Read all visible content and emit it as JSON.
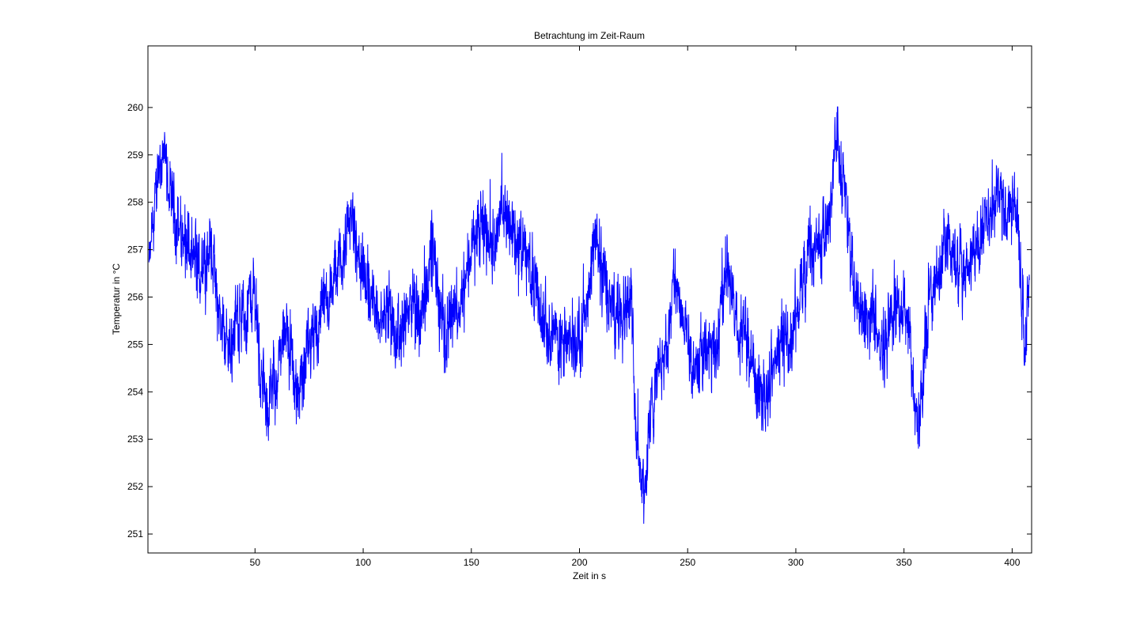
{
  "chart_data": {
    "type": "line",
    "title": "Betrachtung im Zeit-Raum",
    "xlabel": "Zeit in s",
    "ylabel": "Temperatur in °C",
    "xlim": [
      0.5,
      409
    ],
    "ylim": [
      250.6,
      261.3
    ],
    "xticks": [
      50,
      100,
      150,
      200,
      250,
      300,
      350,
      400
    ],
    "yticks": [
      251,
      252,
      253,
      254,
      255,
      256,
      257,
      258,
      259,
      260
    ],
    "grid": false,
    "legend": "none",
    "series": [
      {
        "color": "#0000ff",
        "samples_per_second": 10,
        "noise_amplitude": 0.9,
        "trend": [
          [
            1,
            256.5
          ],
          [
            3,
            257.6
          ],
          [
            5,
            258.6
          ],
          [
            7,
            259.0
          ],
          [
            9,
            258.5
          ],
          [
            12,
            258.0
          ],
          [
            15,
            257.4
          ],
          [
            18,
            257.2
          ],
          [
            20,
            256.8
          ],
          [
            22,
            256.6
          ],
          [
            25,
            256.7
          ],
          [
            28,
            257.0
          ],
          [
            30,
            257.2
          ],
          [
            32,
            256.0
          ],
          [
            35,
            255.3
          ],
          [
            38,
            255.0
          ],
          [
            40,
            255.2
          ],
          [
            43,
            255.8
          ],
          [
            45,
            255.5
          ],
          [
            48,
            256.0
          ],
          [
            50,
            256.2
          ],
          [
            52,
            254.8
          ],
          [
            55,
            253.6
          ],
          [
            58,
            254.0
          ],
          [
            60,
            254.4
          ],
          [
            62,
            254.8
          ],
          [
            65,
            255.4
          ],
          [
            67,
            254.8
          ],
          [
            69,
            253.8
          ],
          [
            71,
            254.2
          ],
          [
            74,
            255.0
          ],
          [
            77,
            255.0
          ],
          [
            80,
            255.6
          ],
          [
            84,
            255.9
          ],
          [
            88,
            256.5
          ],
          [
            92,
            257.0
          ],
          [
            95,
            257.8
          ],
          [
            97,
            257.0
          ],
          [
            100,
            256.4
          ],
          [
            104,
            256.0
          ],
          [
            108,
            255.6
          ],
          [
            112,
            255.8
          ],
          [
            115,
            255.0
          ],
          [
            118,
            255.2
          ],
          [
            122,
            255.9
          ],
          [
            126,
            255.5
          ],
          [
            130,
            256.5
          ],
          [
            132,
            257.2
          ],
          [
            135,
            255.8
          ],
          [
            138,
            255.0
          ],
          [
            141,
            255.8
          ],
          [
            145,
            256.0
          ],
          [
            149,
            256.9
          ],
          [
            152,
            257.2
          ],
          [
            156,
            257.3
          ],
          [
            160,
            257.2
          ],
          [
            163,
            257.5
          ],
          [
            166,
            257.8
          ],
          [
            170,
            257.3
          ],
          [
            174,
            257.0
          ],
          [
            178,
            256.6
          ],
          [
            182,
            255.6
          ],
          [
            185,
            255.6
          ],
          [
            190,
            255.0
          ],
          [
            194,
            255.0
          ],
          [
            198,
            255.0
          ],
          [
            202,
            255.5
          ],
          [
            205,
            256.0
          ],
          [
            207,
            257.3
          ],
          [
            210,
            256.8
          ],
          [
            213,
            256.0
          ],
          [
            217,
            255.5
          ],
          [
            220,
            256.0
          ],
          [
            224,
            256.0
          ],
          [
            226,
            253.5
          ],
          [
            228,
            252.5
          ],
          [
            230,
            252.0
          ],
          [
            232,
            253.0
          ],
          [
            236,
            254.5
          ],
          [
            240,
            255.0
          ],
          [
            244,
            256.5
          ],
          [
            248,
            255.5
          ],
          [
            252,
            254.5
          ],
          [
            256,
            254.5
          ],
          [
            260,
            255.0
          ],
          [
            264,
            255.0
          ],
          [
            268,
            256.5
          ],
          [
            271,
            256.0
          ],
          [
            274,
            255.0
          ],
          [
            277,
            255.5
          ],
          [
            280,
            254.5
          ],
          [
            284,
            254.0
          ],
          [
            287,
            254.0
          ],
          [
            290,
            254.8
          ],
          [
            294,
            255.2
          ],
          [
            298,
            255.0
          ],
          [
            302,
            256.0
          ],
          [
            306,
            257.0
          ],
          [
            310,
            257.0
          ],
          [
            314,
            257.4
          ],
          [
            317,
            258.5
          ],
          [
            319,
            259.4
          ],
          [
            321,
            258.8
          ],
          [
            324,
            257.5
          ],
          [
            328,
            256.0
          ],
          [
            332,
            255.6
          ],
          [
            336,
            255.7
          ],
          [
            340,
            255.0
          ],
          [
            344,
            255.4
          ],
          [
            348,
            255.9
          ],
          [
            352,
            255.4
          ],
          [
            355,
            254.0
          ],
          [
            357,
            253.5
          ],
          [
            359,
            254.5
          ],
          [
            362,
            256.0
          ],
          [
            366,
            256.5
          ],
          [
            370,
            257.2
          ],
          [
            374,
            256.8
          ],
          [
            378,
            256.5
          ],
          [
            382,
            256.9
          ],
          [
            386,
            257.2
          ],
          [
            390,
            257.9
          ],
          [
            394,
            258.2
          ],
          [
            398,
            257.8
          ],
          [
            401,
            258.0
          ],
          [
            403,
            257.2
          ],
          [
            405,
            255.8
          ],
          [
            406,
            254.6
          ],
          [
            407,
            255.9
          ],
          [
            408,
            256.6
          ]
        ]
      }
    ]
  }
}
